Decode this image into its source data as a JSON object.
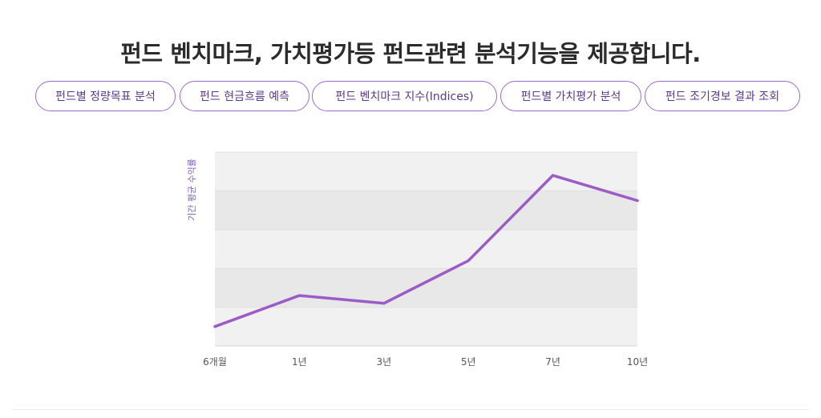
{
  "headline": "펀드 벤치마크, 가치평가등 펀드관련 분석기능을 제공합니다.",
  "tabs": [
    {
      "label": "펀드별 정량목표 분석"
    },
    {
      "label": "펀드 현금흐름 예측"
    },
    {
      "label": "펀드 벤치마크 지수(Indices)"
    },
    {
      "label": "펀드별 가치평가 분석"
    },
    {
      "label": "펀드 조기경보 결과 조회"
    }
  ],
  "colors": {
    "accent": "#9a6bd0",
    "line": "#9b5cc6",
    "band_light": "#f1f1f1",
    "band_dark": "#e8e8e8"
  },
  "chart_data": {
    "type": "line",
    "categories": [
      "6개월",
      "1년",
      "3년",
      "5년",
      "7년",
      "10년"
    ],
    "values": [
      0.5,
      1.3,
      1.1,
      2.2,
      4.4,
      3.75
    ],
    "ylabel": "기간 평균 수익률",
    "xlabel": "",
    "title": "",
    "ylim": [
      0,
      5
    ],
    "grid": true,
    "ytick_labels_visible": false
  }
}
